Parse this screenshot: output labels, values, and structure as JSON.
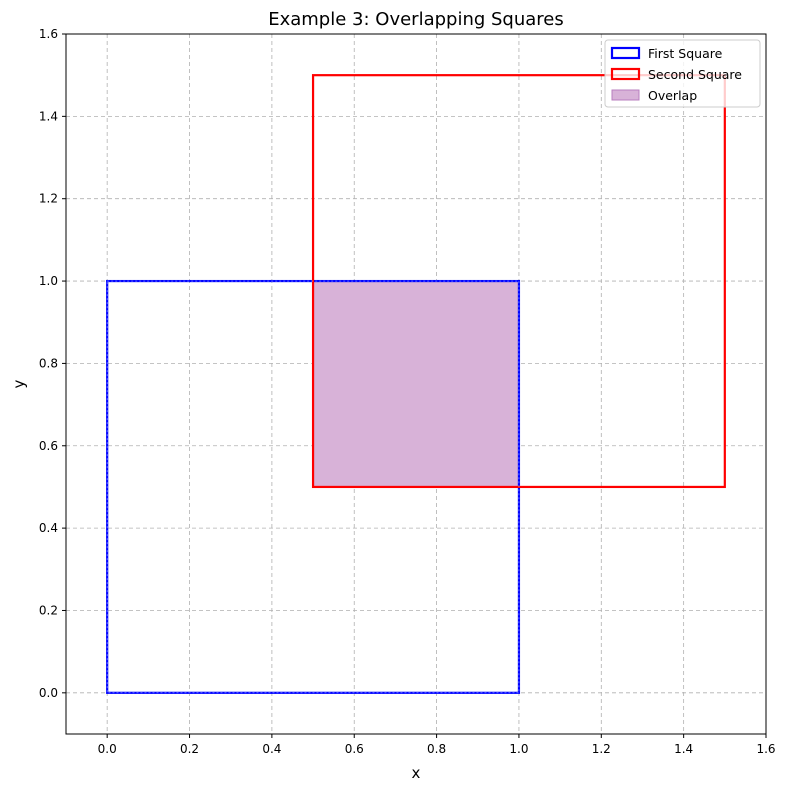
{
  "chart_data": {
    "type": "area",
    "title": "Example 3: Overlapping Squares",
    "xlabel": "x",
    "ylabel": "y",
    "xlim": [
      -0.1,
      1.6
    ],
    "ylim": [
      -0.1,
      1.6
    ],
    "xticks": [
      "0.0",
      "0.2",
      "0.4",
      "0.6",
      "0.8",
      "1.0",
      "1.2",
      "1.4",
      "1.6"
    ],
    "yticks": [
      "0.0",
      "0.2",
      "0.4",
      "0.6",
      "0.8",
      "1.0",
      "1.2",
      "1.4",
      "1.6"
    ],
    "grid": true,
    "legend_position": "top-right",
    "series": [
      {
        "name": "First Square",
        "kind": "outline",
        "x": [
          0,
          1
        ],
        "y": [
          0,
          1
        ],
        "color": "#0000ff",
        "fill": "none"
      },
      {
        "name": "Second Square",
        "kind": "outline",
        "x": [
          0.5,
          1.5
        ],
        "y": [
          0.5,
          1.5
        ],
        "color": "#ff0000",
        "fill": "none"
      },
      {
        "name": "Overlap",
        "kind": "filled",
        "x": [
          0.5,
          1
        ],
        "y": [
          0.5,
          1
        ],
        "color": "#b87fbf",
        "fill": "#d8b2d8"
      }
    ]
  }
}
